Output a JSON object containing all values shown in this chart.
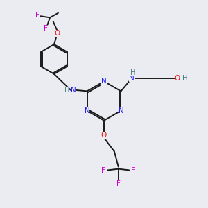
{
  "background_color": "#ebebf2",
  "bond_color": "#1a1a1a",
  "N_color": "#2020ee",
  "O_color": "#ee1010",
  "F_color": "#cc00cc",
  "H_color": "#408080",
  "figsize": [
    3.0,
    3.0
  ],
  "dpi": 100,
  "xlim": [
    0,
    10
  ],
  "ylim": [
    0,
    10
  ]
}
